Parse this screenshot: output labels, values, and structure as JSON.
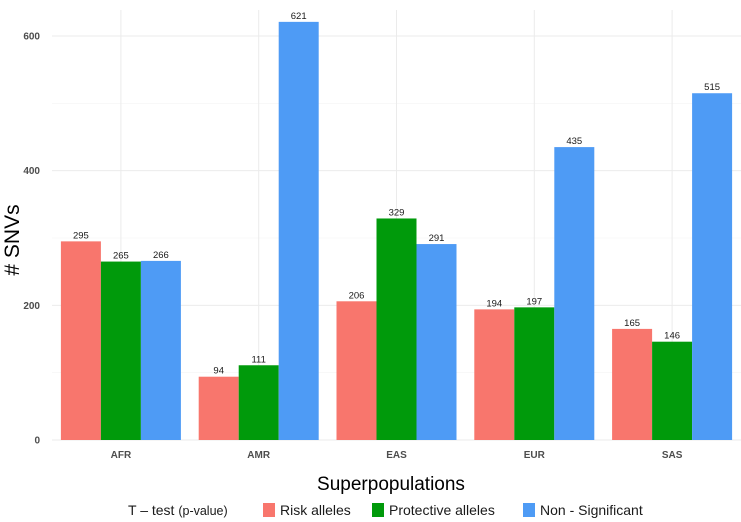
{
  "colors": {
    "risk": "#F8766D",
    "protective": "#009A0B",
    "nonsig": "#4E9BF5",
    "grid": "#ebebeb"
  },
  "legend": {
    "title_main": "T – test",
    "title_sub": "(p-value)",
    "items": [
      "Risk alleles",
      "Protective alleles",
      "Non - Significant"
    ]
  },
  "chart_data": {
    "type": "bar",
    "title": "",
    "xlabel": "Superpopulations",
    "ylabel": "# SNVs",
    "ylim": [
      0,
      640
    ],
    "yticks": [
      0,
      200,
      400,
      600
    ],
    "categories": [
      "AFR",
      "AMR",
      "EAS",
      "EUR",
      "SAS"
    ],
    "series": [
      {
        "name": "Risk alleles",
        "values": [
          295,
          94,
          206,
          194,
          165
        ]
      },
      {
        "name": "Protective alleles",
        "values": [
          265,
          111,
          329,
          197,
          146
        ]
      },
      {
        "name": "Non - Significant",
        "values": [
          266,
          621,
          291,
          435,
          515
        ]
      }
    ],
    "grid": true,
    "legend_position": "bottom"
  }
}
